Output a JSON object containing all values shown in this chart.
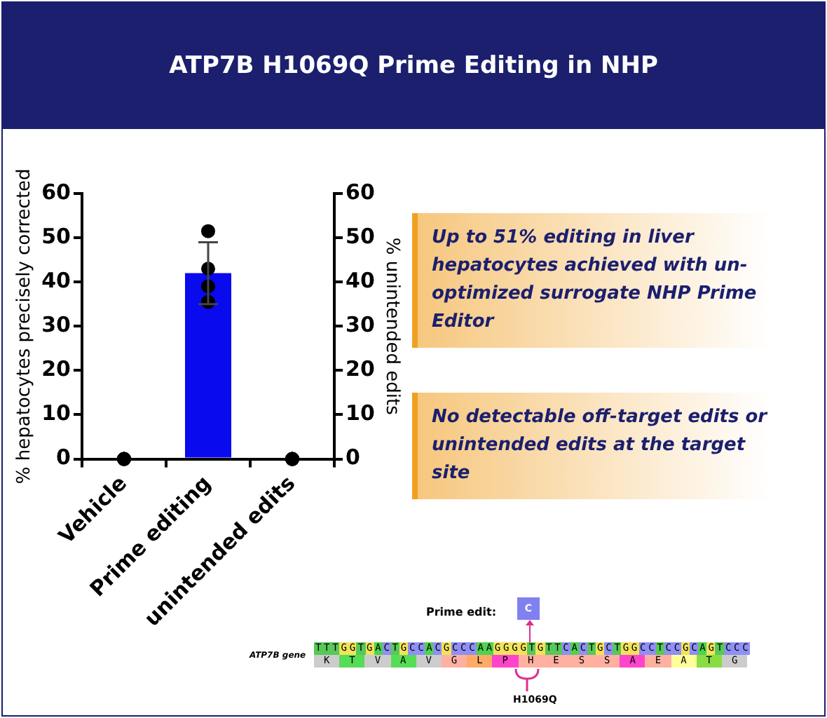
{
  "chart_data": {
    "type": "bar",
    "title": "ATP7B H1069Q Prime Editing in NHP",
    "categories": [
      "Vehicle",
      "Prime editing",
      "unintended edits"
    ],
    "ylabel": "% hepatocytes precisely corrected",
    "y2label": "% unintended edits",
    "ylim": [
      0,
      60
    ],
    "yticks": [
      0,
      10,
      20,
      30,
      40,
      50,
      60
    ],
    "y2lim": [
      0,
      60
    ],
    "y2ticks": [
      0,
      10,
      20,
      30,
      40,
      50,
      60
    ],
    "legend": false,
    "marker": "circle",
    "series": [
      {
        "color": "#0a0aee",
        "values": [
          0,
          42,
          0
        ],
        "errors": [
          null,
          7,
          null
        ]
      },
      {
        "type": "scatter",
        "color": "#000000",
        "x": [
          "Vehicle",
          "Vehicle",
          "Vehicle",
          "Vehicle",
          "Prime editing",
          "Prime editing",
          "Prime editing",
          "Prime editing",
          "unintended edits",
          "unintended edits",
          "unintended edits",
          "unintended edits"
        ],
        "values": [
          0,
          0,
          0,
          0,
          51.5,
          43,
          39,
          35.5,
          0,
          0,
          0,
          0
        ]
      }
    ],
    "annotations": [
      "Up to 51% editing in liver hepatocytes achieved with un-optimized surrogate NHP Prime Editor",
      "No detectable off-target edits or unintended edits at the target site",
      "Prime edit:",
      "C",
      "ATP7B gene",
      "TTTGGTGACTGCCACGCCCAAGGGGTGTTCACTGCTGGCCTCCGCAGTCCC",
      "K T V A V G L P H E S S A E A T G",
      "H1069Q"
    ]
  }
}
